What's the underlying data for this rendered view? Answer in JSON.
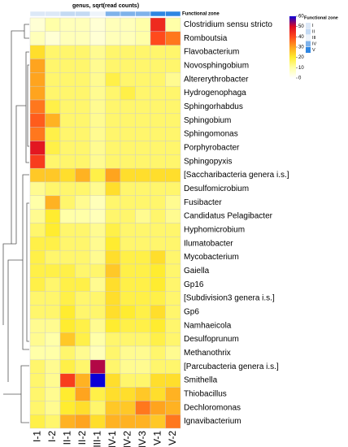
{
  "chart_data": {
    "type": "heatmap",
    "title": "genus, sqrt(read counts)",
    "columns": [
      "I-1",
      "I-2",
      "II-1",
      "II-2",
      "III-1",
      "IV-1",
      "IV-2",
      "IV-3",
      "V-1",
      "V-2"
    ],
    "column_colors": [
      "#dce8f7",
      "#dce8f7",
      "#c4daf3",
      "#c4daf3",
      "#eef4fb",
      "#7fb2ea",
      "#7fb2ea",
      "#7fb2ea",
      "#2e86e2",
      "#2e86e2"
    ],
    "rows": [
      "Clostridium sensu stricto",
      "Romboutsia",
      "Flavobacterium",
      "Novosphingobium",
      "Altererythrobacter",
      "Hydrogenophaga",
      "Sphingorhabdus",
      "Sphingobium",
      "Sphingomonas",
      "Porphyrobacter",
      "Sphingopyxis",
      "[Saccharibacteria genera  i.s.]",
      "Desulfomicrobium",
      "Fusibacter",
      "Candidatus Pelagibacter",
      "Hyphomicrobium",
      "Ilumatobacter",
      "Mycobacterium",
      "Gaiella",
      "Gp16",
      "[Subdivision3 genera  i.s.]",
      "Gp6",
      "Namhaeicola",
      "Desulfoprunum",
      "Methanothrix",
      "[Parcubacteria genera  i.s.]",
      "Smithella",
      "Thiobacillus",
      "Dechloromonas",
      "Ignavibacterium"
    ],
    "values": [
      [
        5,
        10,
        8,
        8,
        5,
        8,
        8,
        10,
        45,
        10
      ],
      [
        8,
        5,
        8,
        8,
        5,
        8,
        8,
        10,
        40,
        35
      ],
      [
        22,
        15,
        15,
        15,
        12,
        15,
        15,
        15,
        15,
        15
      ],
      [
        30,
        15,
        15,
        15,
        12,
        15,
        15,
        15,
        15,
        15
      ],
      [
        30,
        15,
        15,
        15,
        12,
        18,
        15,
        15,
        15,
        12
      ],
      [
        30,
        15,
        15,
        15,
        12,
        15,
        18,
        15,
        15,
        15
      ],
      [
        35,
        18,
        15,
        15,
        12,
        15,
        15,
        15,
        15,
        15
      ],
      [
        38,
        28,
        15,
        15,
        12,
        15,
        15,
        15,
        15,
        15
      ],
      [
        35,
        18,
        15,
        15,
        12,
        15,
        15,
        15,
        15,
        15
      ],
      [
        48,
        18,
        15,
        15,
        12,
        15,
        15,
        15,
        15,
        15
      ],
      [
        42,
        15,
        15,
        15,
        12,
        15,
        15,
        15,
        15,
        15
      ],
      [
        25,
        25,
        22,
        28,
        18,
        30,
        22,
        22,
        22,
        22
      ],
      [
        12,
        15,
        15,
        15,
        12,
        22,
        15,
        15,
        15,
        15
      ],
      [
        10,
        28,
        15,
        12,
        8,
        15,
        15,
        15,
        15,
        12
      ],
      [
        12,
        20,
        10,
        10,
        8,
        15,
        15,
        12,
        15,
        12
      ],
      [
        15,
        20,
        15,
        15,
        12,
        18,
        15,
        15,
        15,
        15
      ],
      [
        18,
        18,
        15,
        15,
        12,
        20,
        15,
        15,
        15,
        15
      ],
      [
        18,
        15,
        15,
        15,
        12,
        22,
        18,
        18,
        22,
        15
      ],
      [
        18,
        18,
        18,
        15,
        15,
        25,
        18,
        18,
        20,
        15
      ],
      [
        18,
        15,
        18,
        18,
        12,
        22,
        18,
        18,
        20,
        15
      ],
      [
        15,
        15,
        18,
        15,
        15,
        22,
        18,
        18,
        18,
        15
      ],
      [
        15,
        15,
        20,
        15,
        15,
        22,
        20,
        18,
        22,
        15
      ],
      [
        12,
        12,
        20,
        18,
        12,
        20,
        18,
        18,
        20,
        15
      ],
      [
        12,
        10,
        25,
        18,
        10,
        15,
        15,
        15,
        18,
        15
      ],
      [
        10,
        10,
        15,
        12,
        8,
        15,
        12,
        12,
        15,
        12
      ],
      [
        15,
        12,
        18,
        15,
        52,
        15,
        12,
        12,
        15,
        15
      ],
      [
        15,
        12,
        42,
        28,
        60,
        22,
        15,
        15,
        22,
        22
      ],
      [
        15,
        12,
        20,
        30,
        18,
        22,
        22,
        25,
        22,
        28
      ],
      [
        15,
        12,
        20,
        22,
        15,
        25,
        25,
        35,
        30,
        28
      ],
      [
        18,
        15,
        28,
        30,
        22,
        28,
        28,
        28,
        25,
        35
      ]
    ],
    "zlim": [
      0,
      60
    ],
    "zticks": [
      0,
      10,
      20,
      30,
      40,
      50,
      60
    ],
    "colorscale": [
      "#ffffff",
      "#ffffa8",
      "#ffec30",
      "#ffa41e",
      "#ff4a1c",
      "#dc0a22",
      "#0a00d8"
    ],
    "zone_legend": {
      "title": "Functional zone",
      "labels": [
        "I",
        "II",
        "III",
        "IV",
        "V"
      ],
      "colors": [
        "#dce8f7",
        "#c4daf3",
        "#eef4fb",
        "#7fb2ea",
        "#2e86e2"
      ]
    }
  }
}
